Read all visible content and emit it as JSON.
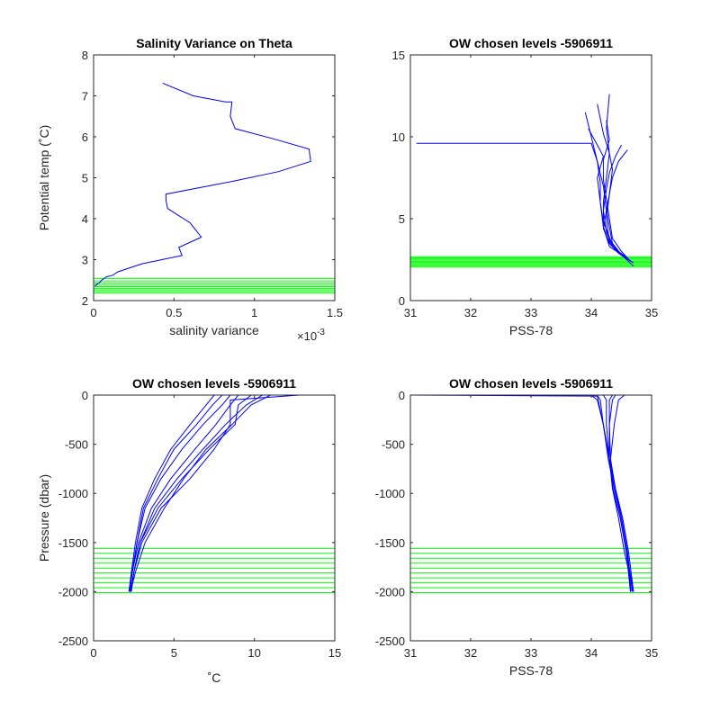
{
  "chart_data": [
    {
      "type": "line",
      "title": "Salinity Variance on Theta",
      "xlabel": "salinity variance",
      "x_multiplier_label": "×10",
      "x_multiplier_exp": "-3",
      "ylabel": "Potential temp (˚C)",
      "xlim": [
        0,
        1.5
      ],
      "ylim": [
        2,
        8
      ],
      "xticks": [
        "0",
        "0.5",
        "1",
        "1.5"
      ],
      "xtick_values": [
        0,
        0.5,
        1,
        1.5
      ],
      "yticks": [
        "2",
        "3",
        "4",
        "5",
        "6",
        "7",
        "8"
      ],
      "ytick_values": [
        2,
        3,
        4,
        5,
        6,
        7,
        8
      ],
      "series": [
        {
          "color": "#0000ff",
          "x": [
            0.43,
            0.62,
            0.82,
            0.86,
            0.85,
            0.88,
            1.12,
            1.34,
            1.35,
            1.15,
            0.85,
            0.45,
            0.45,
            0.46,
            0.5,
            0.6,
            0.67,
            0.53,
            0.55,
            0.3,
            0.15,
            0.12,
            0.08,
            0.05,
            0.04,
            0.02,
            0.01
          ],
          "y": [
            7.31,
            7.0,
            6.85,
            6.85,
            6.5,
            6.2,
            5.95,
            5.7,
            5.4,
            5.15,
            4.9,
            4.6,
            4.45,
            4.25,
            4.15,
            3.9,
            3.55,
            3.3,
            3.1,
            2.9,
            2.7,
            2.62,
            2.58,
            2.5,
            2.45,
            2.4,
            2.35
          ]
        }
      ],
      "hlines": {
        "color": "#00ff00",
        "y": [
          2.18,
          2.22,
          2.26,
          2.3,
          2.34,
          2.38,
          2.43,
          2.48,
          2.54
        ]
      }
    },
    {
      "type": "line",
      "title": "OW chosen levels -5906911",
      "xlabel": "PSS-78",
      "ylabel": "",
      "xlim": [
        31,
        35
      ],
      "ylim": [
        0,
        15
      ],
      "xticks": [
        "31",
        "32",
        "33",
        "34",
        "35"
      ],
      "xtick_values": [
        31,
        32,
        33,
        34,
        35
      ],
      "yticks": [
        "0",
        "5",
        "10",
        "15"
      ],
      "ytick_values": [
        0,
        5,
        10,
        15
      ],
      "series": [
        {
          "color": "#0000ff",
          "x": [
            31.1,
            34.0,
            34.1,
            34.2,
            34.25,
            34.3,
            34.35,
            34.5,
            34.7
          ],
          "y": [
            9.6,
            9.6,
            8.5,
            7.0,
            5.5,
            4.5,
            3.5,
            2.8,
            2.1
          ]
        },
        {
          "color": "#0000ff",
          "x": [
            34.3,
            34.25,
            34.3,
            34.25,
            34.2,
            34.2,
            34.3,
            34.5,
            34.6
          ],
          "y": [
            12.6,
            10.5,
            9.0,
            7.5,
            6.0,
            4.5,
            3.3,
            2.8,
            2.5
          ]
        },
        {
          "color": "#0000ff",
          "x": [
            33.9,
            34.0,
            34.1,
            34.15,
            34.15,
            34.2,
            34.3,
            34.45,
            34.6
          ],
          "y": [
            11.5,
            10.0,
            8.5,
            7.2,
            6.0,
            4.5,
            3.5,
            2.9,
            2.6
          ]
        },
        {
          "color": "#0000ff",
          "x": [
            34.5,
            34.4,
            34.3,
            34.25,
            34.2,
            34.25,
            34.35,
            34.5,
            34.65
          ],
          "y": [
            9.5,
            8.8,
            7.8,
            6.8,
            5.5,
            4.2,
            3.3,
            2.8,
            2.4
          ]
        },
        {
          "color": "#0000ff",
          "x": [
            34.1,
            34.2,
            34.3,
            34.35,
            34.3,
            34.25,
            34.3,
            34.45,
            34.6
          ],
          "y": [
            12.0,
            10.2,
            9.0,
            8.0,
            6.5,
            5.0,
            3.6,
            3.0,
            2.6
          ]
        },
        {
          "color": "#0000ff",
          "x": [
            33.95,
            34.1,
            34.2,
            34.1,
            34.15,
            34.2,
            34.35,
            34.5,
            34.7
          ],
          "y": [
            10.5,
            9.5,
            8.8,
            7.5,
            6.0,
            4.8,
            3.4,
            2.8,
            2.3
          ]
        },
        {
          "color": "#0000ff",
          "x": [
            34.6,
            34.45,
            34.35,
            34.3,
            34.25,
            34.2,
            34.3,
            34.45,
            34.6
          ],
          "y": [
            9.2,
            8.5,
            7.5,
            6.5,
            5.5,
            4.4,
            3.5,
            2.9,
            2.5
          ]
        },
        {
          "color": "#0000ff",
          "x": [
            34.25,
            34.3,
            34.2,
            34.2,
            34.25,
            34.3,
            34.35,
            34.5,
            34.65
          ],
          "y": [
            11.0,
            9.8,
            8.6,
            7.4,
            6.2,
            5.0,
            3.8,
            3.0,
            2.4
          ]
        }
      ],
      "hlines": {
        "color": "#00ff00",
        "y": [
          2.05,
          2.12,
          2.19,
          2.26,
          2.33,
          2.4,
          2.47,
          2.54,
          2.61,
          2.68
        ]
      }
    },
    {
      "type": "line",
      "title": "OW chosen levels -5906911",
      "xlabel": "˚C",
      "ylabel": "Pressure (dbar)",
      "xlim": [
        0,
        15
      ],
      "ylim": [
        -2500,
        0
      ],
      "xticks": [
        "0",
        "5",
        "10",
        "15"
      ],
      "xtick_values": [
        0,
        5,
        10,
        15
      ],
      "yticks": [
        "-2500",
        "-2000",
        "-1500",
        "-1000",
        "-500",
        "0"
      ],
      "ytick_values": [
        -2500,
        -2000,
        -1500,
        -1000,
        -500,
        0
      ],
      "series": [
        {
          "color": "#0000ff",
          "x": [
            8.5,
            8.0,
            6.8,
            5.5,
            4.2,
            3.2,
            2.7,
            2.4,
            2.2
          ],
          "y": [
            0,
            -100,
            -300,
            -550,
            -850,
            -1150,
            -1500,
            -1800,
            -2000
          ]
        },
        {
          "color": "#0000ff",
          "x": [
            9.0,
            8.5,
            7.6,
            6.3,
            4.8,
            3.6,
            2.8,
            2.4,
            2.25
          ],
          "y": [
            0,
            -100,
            -300,
            -550,
            -850,
            -1150,
            -1500,
            -1800,
            -2000
          ]
        },
        {
          "color": "#0000ff",
          "x": [
            10.5,
            9.5,
            8.2,
            6.8,
            5.2,
            3.8,
            2.9,
            2.5,
            2.3
          ],
          "y": [
            0,
            -100,
            -300,
            -550,
            -850,
            -1150,
            -1500,
            -1800,
            -2000
          ]
        },
        {
          "color": "#0000ff",
          "x": [
            12.8,
            8.5,
            8.5,
            7.5,
            6.0,
            4.2,
            3.0,
            2.5,
            2.35
          ],
          "y": [
            0,
            -50,
            -300,
            -550,
            -850,
            -1150,
            -1500,
            -1800,
            -2000
          ]
        },
        {
          "color": "#0000ff",
          "x": [
            7.5,
            7.0,
            6.0,
            4.8,
            3.8,
            3.0,
            2.6,
            2.35,
            2.2
          ],
          "y": [
            0,
            -100,
            -300,
            -550,
            -850,
            -1150,
            -1500,
            -1800,
            -2000
          ]
        },
        {
          "color": "#0000ff",
          "x": [
            9.8,
            9.0,
            8.8,
            7.2,
            5.5,
            4.0,
            2.9,
            2.5,
            2.3
          ],
          "y": [
            0,
            -100,
            -300,
            -550,
            -850,
            -1150,
            -1500,
            -1800,
            -2000
          ]
        },
        {
          "color": "#0000ff",
          "x": [
            8.0,
            7.4,
            6.4,
            5.0,
            4.0,
            3.1,
            2.7,
            2.4,
            2.2
          ],
          "y": [
            0,
            -100,
            -300,
            -550,
            -850,
            -1150,
            -1500,
            -1800,
            -2000
          ]
        },
        {
          "color": "#0000ff",
          "x": [
            11.0,
            9.8,
            8.6,
            7.0,
            5.6,
            4.4,
            3.2,
            2.6,
            2.3
          ],
          "y": [
            0,
            -100,
            -300,
            -550,
            -850,
            -1150,
            -1500,
            -1800,
            -2000
          ]
        }
      ],
      "hlines": {
        "color": "#00ff00",
        "y": [
          -1560,
          -1610,
          -1660,
          -1710,
          -1760,
          -1810,
          -1860,
          -1910,
          -1960,
          -2010
        ]
      }
    },
    {
      "type": "line",
      "title": "OW chosen levels -5906911",
      "xlabel": "PSS-78",
      "ylabel": "",
      "xlim": [
        31,
        35
      ],
      "ylim": [
        -2500,
        0
      ],
      "xticks": [
        "31",
        "32",
        "33",
        "34",
        "35"
      ],
      "xtick_values": [
        31,
        32,
        33,
        34,
        35
      ],
      "yticks": [
        "-2500",
        "-2000",
        "-1500",
        "-1000",
        "-500",
        "0"
      ],
      "ytick_values": [
        -2500,
        -2000,
        -1500,
        -1000,
        -500,
        0
      ],
      "series": [
        {
          "color": "#0000ff",
          "x": [
            31.05,
            34.1,
            34.2,
            34.3,
            34.4,
            34.5,
            34.6,
            34.65
          ],
          "y": [
            0,
            -10,
            -300,
            -650,
            -950,
            -1250,
            -1600,
            -2000
          ]
        },
        {
          "color": "#0000ff",
          "x": [
            34.4,
            34.35,
            34.3,
            34.3,
            34.35,
            34.45,
            34.55,
            34.7
          ],
          "y": [
            0,
            -50,
            -300,
            -650,
            -950,
            -1250,
            -1600,
            -2000
          ]
        },
        {
          "color": "#0000ff",
          "x": [
            34.1,
            34.15,
            34.2,
            34.28,
            34.38,
            34.5,
            34.6,
            34.68
          ],
          "y": [
            0,
            -50,
            -300,
            -650,
            -950,
            -1250,
            -1600,
            -2000
          ]
        },
        {
          "color": "#0000ff",
          "x": [
            34.55,
            34.45,
            34.38,
            34.32,
            34.35,
            34.48,
            34.58,
            34.7
          ],
          "y": [
            0,
            -50,
            -300,
            -650,
            -950,
            -1250,
            -1600,
            -2000
          ]
        },
        {
          "color": "#0000ff",
          "x": [
            34.2,
            34.25,
            34.25,
            34.3,
            34.38,
            34.5,
            34.6,
            34.66
          ],
          "y": [
            0,
            -50,
            -300,
            -650,
            -950,
            -1250,
            -1600,
            -2000
          ]
        },
        {
          "color": "#0000ff",
          "x": [
            34.35,
            34.3,
            34.3,
            34.32,
            34.4,
            34.52,
            34.62,
            34.7
          ],
          "y": [
            0,
            -50,
            -300,
            -650,
            -950,
            -1250,
            -1600,
            -2000
          ]
        },
        {
          "color": "#0000ff",
          "x": [
            34.0,
            34.1,
            34.2,
            34.3,
            34.36,
            34.48,
            34.58,
            34.65
          ],
          "y": [
            0,
            -50,
            -300,
            -650,
            -950,
            -1250,
            -1600,
            -2000
          ]
        }
      ],
      "hlines": {
        "color": "#00ff00",
        "y": [
          -1560,
          -1610,
          -1660,
          -1710,
          -1760,
          -1810,
          -1860,
          -1910,
          -1960,
          -2010
        ]
      }
    }
  ]
}
